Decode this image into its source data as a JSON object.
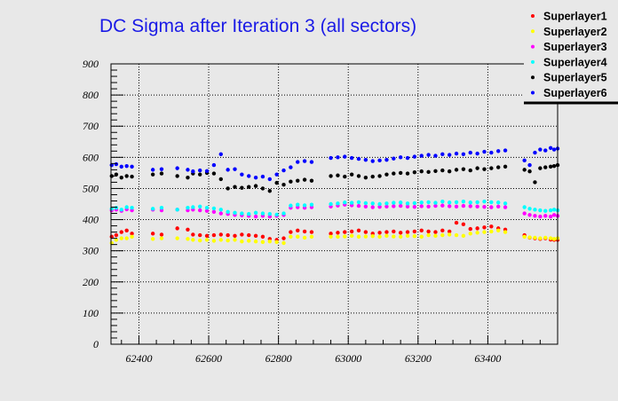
{
  "chart_data": {
    "type": "scatter",
    "title": "DC Sigma after Iteration 3 (all sectors)",
    "xlabel": "",
    "ylabel": "",
    "xlim": [
      62320,
      63600
    ],
    "ylim": [
      0,
      900
    ],
    "grid": true,
    "legend_position": "top-right",
    "x_ticks": [
      62400,
      62600,
      62800,
      63000,
      63200,
      63400
    ],
    "y_ticks": [
      0,
      100,
      200,
      300,
      400,
      500,
      600,
      700,
      800,
      900
    ],
    "x": [
      62322,
      62335,
      62350,
      62365,
      62380,
      62440,
      62465,
      62510,
      62540,
      62555,
      62575,
      62595,
      62615,
      62635,
      62655,
      62675,
      62695,
      62715,
      62735,
      62755,
      62775,
      62795,
      62815,
      62835,
      62855,
      62875,
      62895,
      62950,
      62970,
      62990,
      63010,
      63030,
      63050,
      63070,
      63090,
      63110,
      63130,
      63150,
      63170,
      63190,
      63210,
      63230,
      63250,
      63270,
      63290,
      63310,
      63330,
      63350,
      63370,
      63390,
      63410,
      63430,
      63450,
      63505,
      63520,
      63535,
      63550,
      63565,
      63580,
      63590,
      63600
    ],
    "series": [
      {
        "name": "Superlayer1",
        "color": "#ff0000",
        "values": [
          345,
          350,
          360,
          365,
          355,
          355,
          352,
          372,
          368,
          352,
          350,
          348,
          350,
          352,
          350,
          348,
          352,
          350,
          348,
          345,
          338,
          335,
          340,
          360,
          365,
          362,
          360,
          355,
          358,
          360,
          362,
          365,
          360,
          355,
          358,
          360,
          362,
          358,
          360,
          362,
          365,
          362,
          360,
          365,
          362,
          390,
          385,
          370,
          372,
          375,
          378,
          372,
          368,
          350,
          342,
          340,
          338,
          340,
          336,
          335,
          335
        ]
      },
      {
        "name": "Superlayer2",
        "color": "#ffff00",
        "values": [
          325,
          335,
          340,
          340,
          345,
          338,
          340,
          340,
          338,
          335,
          333,
          335,
          332,
          335,
          333,
          335,
          330,
          332,
          330,
          328,
          330,
          328,
          325,
          345,
          345,
          342,
          345,
          345,
          345,
          346,
          348,
          345,
          346,
          347,
          345,
          348,
          346,
          345,
          348,
          347,
          345,
          350,
          348,
          350,
          352,
          350,
          348,
          355,
          358,
          360,
          362,
          365,
          360,
          345,
          343,
          342,
          340,
          342,
          340,
          338,
          340
        ]
      },
      {
        "name": "Superlayer3",
        "color": "#ff00ff",
        "values": [
          430,
          432,
          428,
          433,
          430,
          432,
          430,
          432,
          430,
          432,
          430,
          428,
          425,
          420,
          418,
          415,
          414,
          412,
          410,
          412,
          410,
          412,
          415,
          438,
          440,
          438,
          440,
          442,
          445,
          448,
          446,
          444,
          442,
          440,
          441,
          442,
          443,
          444,
          442,
          441,
          443,
          442,
          444,
          445,
          443,
          442,
          444,
          443,
          442,
          441,
          440,
          442,
          440,
          420,
          415,
          412,
          410,
          412,
          410,
          415,
          412
        ]
      },
      {
        "name": "Superlayer4",
        "color": "#00ffff",
        "values": [
          435,
          438,
          432,
          440,
          438,
          435,
          438,
          432,
          438,
          440,
          442,
          438,
          436,
          432,
          425,
          422,
          420,
          418,
          422,
          420,
          418,
          416,
          420,
          445,
          448,
          446,
          448,
          450,
          452,
          455,
          454,
          456,
          453,
          452,
          450,
          452,
          454,
          455,
          452,
          453,
          455,
          456,
          454,
          458,
          455,
          456,
          458,
          455,
          456,
          458,
          456,
          455,
          452,
          440,
          435,
          432,
          430,
          428,
          430,
          432,
          430
        ]
      },
      {
        "name": "Superlayer5",
        "color": "#000000",
        "values": [
          540,
          545,
          535,
          540,
          538,
          545,
          548,
          540,
          535,
          548,
          545,
          550,
          548,
          530,
          500,
          505,
          502,
          505,
          508,
          500,
          492,
          518,
          512,
          522,
          525,
          528,
          525,
          540,
          542,
          538,
          545,
          540,
          535,
          538,
          540,
          545,
          548,
          550,
          548,
          552,
          555,
          553,
          556,
          558,
          555,
          560,
          562,
          558,
          565,
          562,
          565,
          568,
          570,
          560,
          555,
          520,
          565,
          568,
          570,
          572,
          575
        ]
      },
      {
        "name": "Superlayer6",
        "color": "#0000ff",
        "values": [
          575,
          578,
          570,
          572,
          570,
          560,
          562,
          565,
          560,
          555,
          558,
          556,
          575,
          610,
          560,
          562,
          545,
          540,
          535,
          538,
          530,
          545,
          558,
          568,
          585,
          588,
          585,
          598,
          600,
          602,
          598,
          595,
          592,
          588,
          590,
          592,
          596,
          600,
          598,
          602,
          605,
          608,
          605,
          610,
          608,
          612,
          610,
          615,
          612,
          618,
          615,
          620,
          622,
          590,
          575,
          615,
          625,
          622,
          630,
          625,
          628
        ]
      }
    ]
  }
}
